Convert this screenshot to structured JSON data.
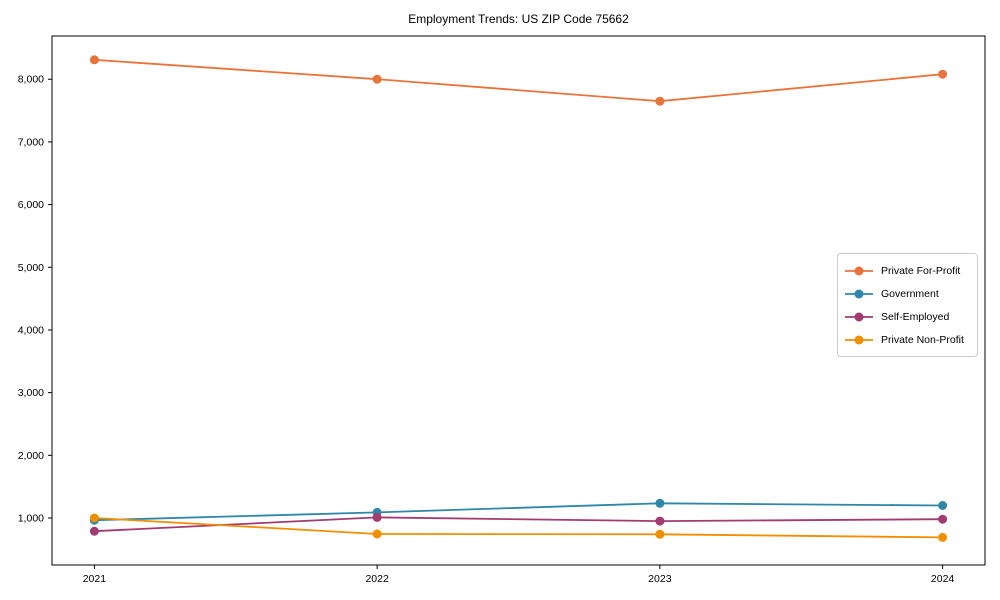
{
  "title": "Employment Trends: US ZIP Code 75662",
  "chart_data": {
    "type": "line",
    "title": "Employment Trends: US ZIP Code 75662",
    "xlabel": "",
    "ylabel": "",
    "x": [
      2021,
      2022,
      2023,
      2024
    ],
    "x_tick_labels": [
      "2021",
      "2022",
      "2023",
      "2024"
    ],
    "series": [
      {
        "name": "Private For-Profit",
        "color": "#E8743B",
        "values": [
          8310,
          8000,
          7650,
          8080
        ]
      },
      {
        "name": "Government",
        "color": "#2E86AB",
        "values": [
          965,
          1090,
          1235,
          1200
        ]
      },
      {
        "name": "Self-Employed",
        "color": "#A23B72",
        "values": [
          790,
          1010,
          950,
          980
        ]
      },
      {
        "name": "Private Non-Profit",
        "color": "#F18F01",
        "values": [
          1000,
          745,
          740,
          690
        ]
      }
    ],
    "yticks": [
      1000,
      2000,
      3000,
      4000,
      5000,
      6000,
      7000,
      8000
    ],
    "ytick_labels": [
      "1,000",
      "2,000",
      "3,000",
      "4,000",
      "5,000",
      "6,000",
      "7,000",
      "8,000"
    ],
    "xlim": [
      2020.85,
      2024.15
    ],
    "ylim": [
      250,
      8690
    ],
    "grid": false,
    "legend_position": "center-right",
    "marker": "circle",
    "axis_color": "#000000"
  }
}
